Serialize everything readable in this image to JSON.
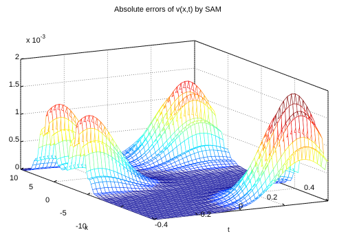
{
  "chart_data": {
    "type": "surface",
    "title": "Absolute errors of v(x,t) by SAM",
    "xlabel": "x",
    "ylabel": "t",
    "zlabel": "",
    "z_multiplier": "x 10",
    "z_exponent": "-3",
    "x_range": [
      -10,
      10
    ],
    "t_range": [
      -0.4,
      0.4
    ],
    "z_range": [
      0,
      2
    ],
    "x_ticks": [
      "10",
      "5",
      "0",
      "-5",
      "-10"
    ],
    "t_ticks": [
      "-0.4",
      "-0.2",
      "0",
      "0.2",
      "0.4"
    ],
    "z_ticks": [
      "0",
      "0.5",
      "1",
      "1.5",
      "2"
    ],
    "peaks": [
      {
        "x": 6,
        "t": -0.35,
        "z": 1.35
      },
      {
        "x": 1.5,
        "t": -0.35,
        "z": 1.35
      },
      {
        "x": 8,
        "t": 0.3,
        "z": 1.4
      },
      {
        "x": -8,
        "t": 0.3,
        "z": 1.9
      }
    ],
    "grid": true,
    "colormap": "jet",
    "mesh_color": "#1a1aa0"
  }
}
